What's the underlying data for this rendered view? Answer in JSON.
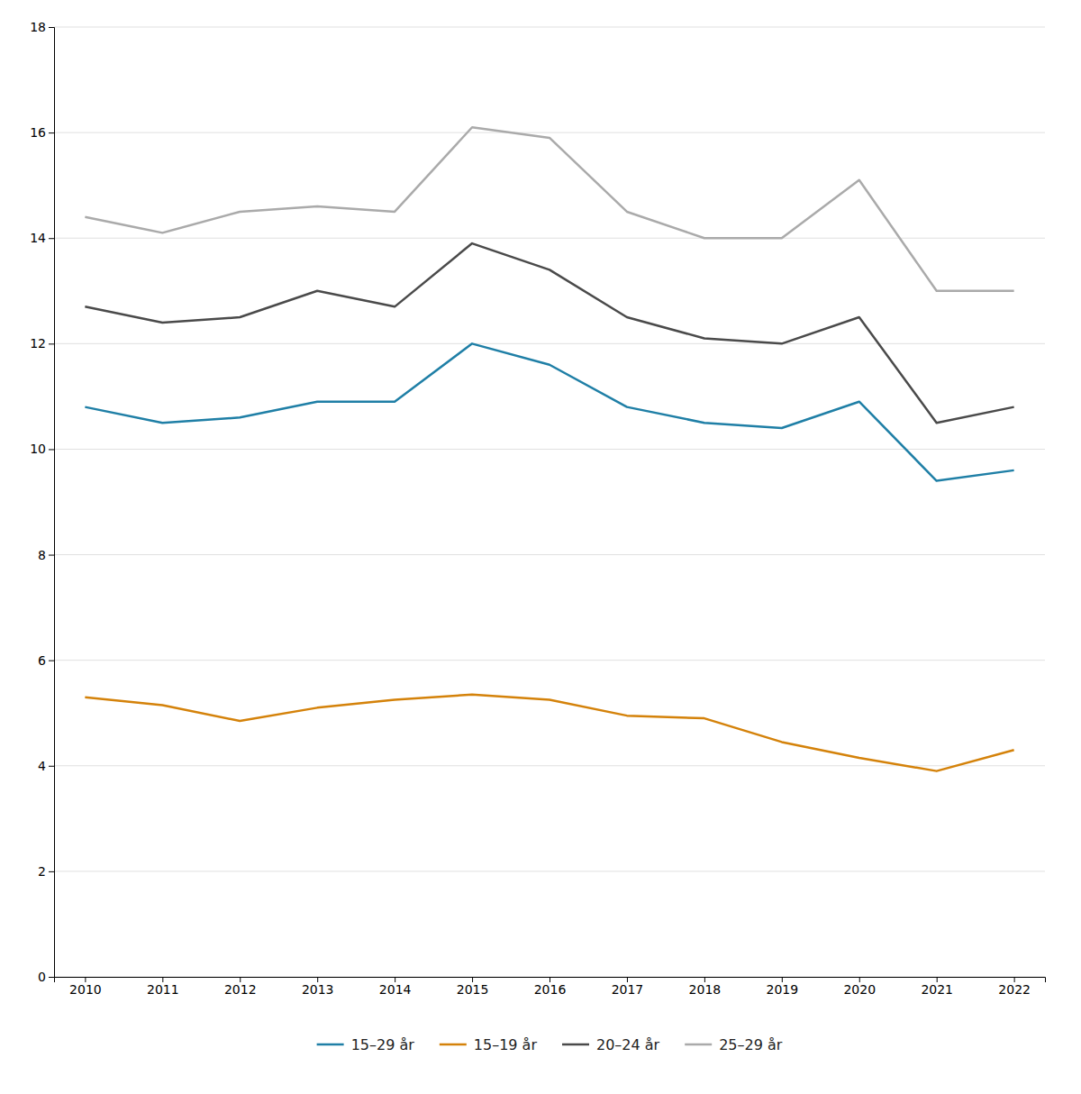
{
  "chart_data": {
    "type": "line",
    "x": [
      2010,
      2011,
      2012,
      2013,
      2014,
      2015,
      2016,
      2017,
      2018,
      2019,
      2020,
      2021,
      2022
    ],
    "series": [
      {
        "name": "15–29 år",
        "color": "#1f7fa6",
        "values": [
          10.8,
          10.5,
          10.6,
          10.9,
          10.9,
          12.0,
          11.6,
          10.8,
          10.5,
          10.4,
          10.9,
          9.4,
          9.6
        ]
      },
      {
        "name": "15–19 år",
        "color": "#d4820a",
        "values": [
          5.3,
          5.15,
          4.85,
          5.1,
          5.25,
          5.35,
          5.25,
          4.95,
          4.9,
          4.45,
          4.15,
          3.9,
          4.3
        ]
      },
      {
        "name": "20–24 år",
        "color": "#4a4a4a",
        "values": [
          12.7,
          12.4,
          12.5,
          13.0,
          12.7,
          13.9,
          13.4,
          12.5,
          12.1,
          12.0,
          12.5,
          10.5,
          10.8
        ]
      },
      {
        "name": "25–29 år",
        "color": "#aaaaaa",
        "values": [
          14.4,
          14.1,
          14.5,
          14.6,
          14.5,
          16.1,
          15.9,
          14.5,
          14.0,
          14.0,
          15.1,
          13.0,
          13.0
        ]
      }
    ],
    "xlim": [
      2009.6,
      2022.4
    ],
    "xticks": [
      2010,
      2011,
      2012,
      2013,
      2014,
      2015,
      2016,
      2017,
      2018,
      2019,
      2020,
      2021,
      2022
    ],
    "ylim": [
      0,
      18
    ],
    "yticks": [
      0,
      2,
      4,
      6,
      8,
      10,
      12,
      14,
      16,
      18
    ],
    "grid": true,
    "legend": "bottom"
  }
}
